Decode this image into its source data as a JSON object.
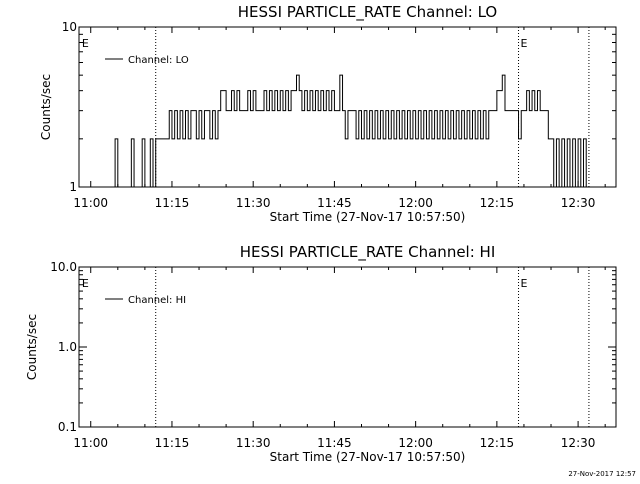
{
  "stamp": "27-Nov-2017 12:57",
  "chart_data": [
    {
      "type": "line",
      "title": "HESSI PARTICLE_RATE Channel: LO",
      "xlabel": "Start Time (27-Nov-17 10:57:50)",
      "ylabel": "Counts/sec",
      "yscale": "log",
      "ylim": [
        1,
        10
      ],
      "xlim": [
        "10:57:50",
        "12:37:00"
      ],
      "ytick_labels": [
        "1",
        "10"
      ],
      "xtick_labels": [
        "11:00",
        "11:15",
        "11:30",
        "11:45",
        "12:00",
        "12:15",
        "12:30"
      ],
      "legend": {
        "position": "top-left",
        "entries": [
          "Channel: LO"
        ]
      },
      "flags": [
        {
          "label": "E",
          "time": "10:58"
        },
        {
          "label": "E",
          "time": "12:19"
        }
      ],
      "vlines": [
        "11:12",
        "12:19",
        "12:32"
      ],
      "series": [
        {
          "name": "Channel: LO",
          "points": [
            [
              "11:04",
              1
            ],
            [
              "11:04.5",
              2
            ],
            [
              "11:05",
              1
            ],
            [
              "11:07",
              1
            ],
            [
              "11:07.5",
              2
            ],
            [
              "11:08",
              1
            ],
            [
              "11:09",
              1
            ],
            [
              "11:09.5",
              2
            ],
            [
              "11:10",
              1
            ],
            [
              "11:11",
              2
            ],
            [
              "11:11.5",
              1
            ],
            [
              "11:12",
              2
            ],
            [
              "11:14",
              2
            ],
            [
              "11:14.5",
              3
            ],
            [
              "11:15",
              2
            ],
            [
              "11:15.5",
              3
            ],
            [
              "11:16",
              2
            ],
            [
              "11:16.5",
              3
            ],
            [
              "11:17",
              2
            ],
            [
              "11:17.5",
              3
            ],
            [
              "11:18",
              2
            ],
            [
              "11:18.5",
              3
            ],
            [
              "11:19",
              3
            ],
            [
              "11:19.5",
              2
            ],
            [
              "11:20",
              3
            ],
            [
              "11:20.5",
              2
            ],
            [
              "11:21",
              3
            ],
            [
              "11:21.5",
              3
            ],
            [
              "11:22",
              2
            ],
            [
              "11:22.5",
              3
            ],
            [
              "11:23",
              2
            ],
            [
              "11:23.5",
              3
            ],
            [
              "11:24",
              4
            ],
            [
              "11:25",
              3
            ],
            [
              "11:26",
              4
            ],
            [
              "11:26.5",
              3
            ],
            [
              "11:27",
              4
            ],
            [
              "11:27.5",
              3
            ],
            [
              "11:28",
              3
            ],
            [
              "11:29",
              4
            ],
            [
              "11:29.5",
              3
            ],
            [
              "11:30",
              4
            ],
            [
              "11:30.5",
              3
            ],
            [
              "11:31",
              3
            ],
            [
              "11:32",
              4
            ],
            [
              "11:32.5",
              3
            ],
            [
              "11:33",
              4
            ],
            [
              "11:33.5",
              3
            ],
            [
              "11:34",
              4
            ],
            [
              "11:34.5",
              3
            ],
            [
              "11:35",
              4
            ],
            [
              "11:35.5",
              3
            ],
            [
              "11:36",
              4
            ],
            [
              "11:36.5",
              3
            ],
            [
              "11:37",
              4
            ],
            [
              "11:38",
              5
            ],
            [
              "11:38.5",
              4
            ],
            [
              "11:39",
              3
            ],
            [
              "11:39.5",
              4
            ],
            [
              "11:40",
              3
            ],
            [
              "11:40.5",
              4
            ],
            [
              "11:41",
              3
            ],
            [
              "11:41.5",
              4
            ],
            [
              "11:42",
              3
            ],
            [
              "11:42.5",
              4
            ],
            [
              "11:43",
              3
            ],
            [
              "11:43.5",
              4
            ],
            [
              "11:44",
              3
            ],
            [
              "11:44.5",
              4
            ],
            [
              "11:45",
              3
            ],
            [
              "11:46",
              5
            ],
            [
              "11:46.5",
              3
            ],
            [
              "11:47",
              2
            ],
            [
              "11:47.5",
              3
            ],
            [
              "11:48",
              3
            ],
            [
              "11:49",
              2
            ],
            [
              "11:49.5",
              3
            ],
            [
              "11:50",
              2
            ],
            [
              "11:50.5",
              3
            ],
            [
              "11:51",
              2
            ],
            [
              "11:51.5",
              3
            ],
            [
              "11:52",
              2
            ],
            [
              "11:52.5",
              3
            ],
            [
              "11:53",
              2
            ],
            [
              "11:53.5",
              3
            ],
            [
              "11:54",
              2
            ],
            [
              "11:54.5",
              3
            ],
            [
              "11:55",
              2
            ],
            [
              "11:55.5",
              3
            ],
            [
              "11:56",
              2
            ],
            [
              "11:56.5",
              3
            ],
            [
              "11:57",
              2
            ],
            [
              "11:57.5",
              3
            ],
            [
              "11:58",
              2
            ],
            [
              "11:58.5",
              3
            ],
            [
              "11:59",
              2
            ],
            [
              "11:59.5",
              3
            ],
            [
              "12:00",
              2
            ],
            [
              "12:00.5",
              3
            ],
            [
              "12:01",
              2
            ],
            [
              "12:01.5",
              3
            ],
            [
              "12:02",
              2
            ],
            [
              "12:02.5",
              3
            ],
            [
              "12:03",
              2
            ],
            [
              "12:03.5",
              3
            ],
            [
              "12:04",
              2
            ],
            [
              "12:04.5",
              3
            ],
            [
              "12:05",
              2
            ],
            [
              "12:05.5",
              3
            ],
            [
              "12:06",
              2
            ],
            [
              "12:06.5",
              3
            ],
            [
              "12:07",
              2
            ],
            [
              "12:07.5",
              3
            ],
            [
              "12:08",
              2
            ],
            [
              "12:08.5",
              3
            ],
            [
              "12:09",
              2
            ],
            [
              "12:09.5",
              3
            ],
            [
              "12:10",
              2
            ],
            [
              "12:10.5",
              3
            ],
            [
              "12:11",
              2
            ],
            [
              "12:11.5",
              3
            ],
            [
              "12:12",
              2
            ],
            [
              "12:12.5",
              3
            ],
            [
              "12:13",
              2
            ],
            [
              "12:13.5",
              3
            ],
            [
              "12:14",
              3
            ],
            [
              "12:15",
              4
            ],
            [
              "12:16",
              5
            ],
            [
              "12:16.5",
              3
            ],
            [
              "12:17",
              3
            ],
            [
              "12:18",
              3
            ],
            [
              "12:19",
              2
            ],
            [
              "12:19.5",
              3
            ],
            [
              "12:20",
              3
            ],
            [
              "12:20.5",
              4
            ],
            [
              "12:21",
              3
            ],
            [
              "12:21.5",
              4
            ],
            [
              "12:22",
              3
            ],
            [
              "12:22.5",
              4
            ],
            [
              "12:23",
              3
            ],
            [
              "12:24",
              3
            ],
            [
              "12:24.5",
              2
            ],
            [
              "12:25",
              2
            ],
            [
              "12:25.5",
              1
            ],
            [
              "12:26",
              2
            ],
            [
              "12:26.5",
              1
            ],
            [
              "12:27",
              2
            ],
            [
              "12:27.5",
              1
            ],
            [
              "12:28",
              2
            ],
            [
              "12:28.5",
              1
            ],
            [
              "12:29",
              2
            ],
            [
              "12:29.5",
              1
            ],
            [
              "12:30",
              2
            ],
            [
              "12:30.5",
              1
            ],
            [
              "12:31",
              2
            ],
            [
              "12:31.5",
              1
            ]
          ]
        }
      ]
    },
    {
      "type": "line",
      "title": "HESSI PARTICLE_RATE Channel: HI",
      "xlabel": "Start Time (27-Nov-17 10:57:50)",
      "ylabel": "Counts/sec",
      "yscale": "log",
      "ylim": [
        0.1,
        10
      ],
      "xlim": [
        "10:57:50",
        "12:37:00"
      ],
      "ytick_labels": [
        "0.1",
        "1.0",
        "10.0"
      ],
      "xtick_labels": [
        "11:00",
        "11:15",
        "11:30",
        "11:45",
        "12:00",
        "12:15",
        "12:30"
      ],
      "legend": {
        "position": "top-left",
        "entries": [
          "Channel: HI"
        ]
      },
      "flags": [
        {
          "label": "E",
          "time": "10:58"
        },
        {
          "label": "E",
          "time": "12:19"
        }
      ],
      "vlines": [
        "11:12",
        "12:19",
        "12:32"
      ],
      "series": [
        {
          "name": "Channel: HI",
          "points": []
        }
      ]
    }
  ]
}
